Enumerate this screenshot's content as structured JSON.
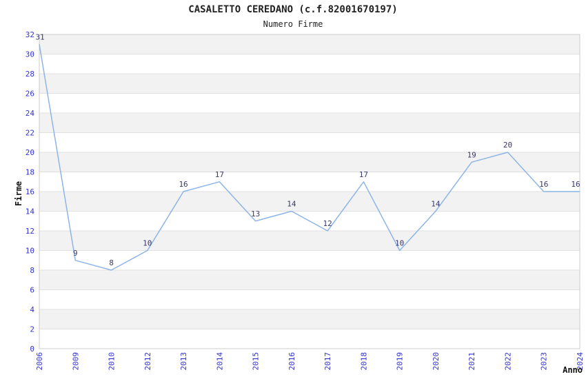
{
  "header": {
    "title": "CASALETTO CEREDANO (c.f.82001670197)",
    "subtitle": "Numero Firme"
  },
  "chart_data": {
    "type": "line",
    "title": "CASALETTO CEREDANO (c.f.82001670197)",
    "subtitle": "Numero Firme",
    "xlabel": "Anno",
    "ylabel": "Firme",
    "categories": [
      "2006",
      "2009",
      "2010",
      "2012",
      "2013",
      "2014",
      "2015",
      "2016",
      "2017",
      "2018",
      "2019",
      "2020",
      "2021",
      "2022",
      "2023",
      "2024"
    ],
    "values": [
      31,
      9,
      8,
      10,
      16,
      17,
      13,
      14,
      12,
      17,
      10,
      14,
      19,
      20,
      16,
      16
    ],
    "ylim": [
      0,
      32
    ],
    "ytick_step": 2,
    "grid": "horizontal gridlines every 2 units with alternating shaded bands",
    "legend_position": "none",
    "point_labels": true,
    "colors": {
      "line": "#8cb4e6",
      "axis_tick_text": "#3232cd",
      "point_label_text": "#37376b",
      "band_fill": "#f2f2f2",
      "gridline": "#e0e0e0",
      "plot_border": "#cccccc",
      "title_text": "#222222",
      "axis_label_text": "#111111"
    }
  }
}
